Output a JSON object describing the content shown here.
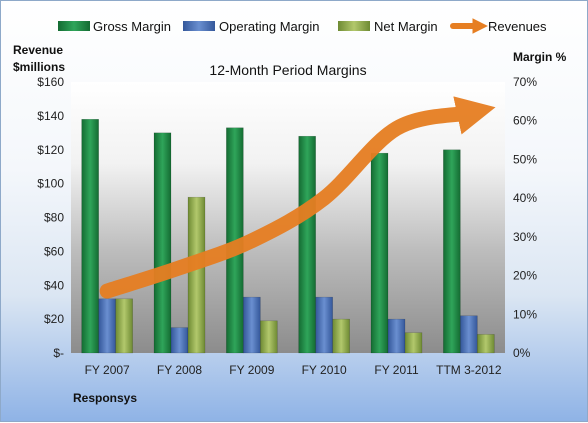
{
  "chart_data": {
    "type": "bar",
    "title": "12-Month Period Margins",
    "company": "Responsys",
    "categories": [
      "FY 2007",
      "FY 2008",
      "FY 2009",
      "FY 2010",
      "FY 2011",
      "TTM 3-2012"
    ],
    "series": [
      {
        "name": "Gross Margin",
        "axis": "left",
        "color": "#1f7a3e",
        "values": [
          138,
          130,
          133,
          128,
          118,
          120
        ]
      },
      {
        "name": "Operating Margin",
        "axis": "left",
        "color": "#4a6fb1",
        "values": [
          32,
          15,
          33,
          33,
          20,
          22
        ]
      },
      {
        "name": "Net Margin",
        "axis": "left",
        "color": "#8fa84a",
        "values": [
          32,
          92,
          19,
          20,
          12,
          11
        ]
      },
      {
        "name": "Revenues",
        "type": "line",
        "axis": "right",
        "color": "#e67e22",
        "values": [
          16,
          22,
          29,
          40,
          58,
          62
        ]
      }
    ],
    "ylabel": "Revenue $millions",
    "ylim": [
      0,
      160
    ],
    "yticks": [
      "$-",
      "$20",
      "$40",
      "$60",
      "$80",
      "$100",
      "$120",
      "$140",
      "$160"
    ],
    "y2label": "Margin %",
    "y2lim": [
      0,
      70
    ],
    "y2ticks": [
      "0%",
      "10%",
      "20%",
      "30%",
      "40%",
      "50%",
      "60%",
      "70%"
    ],
    "legend_position": "top",
    "grid": false
  }
}
